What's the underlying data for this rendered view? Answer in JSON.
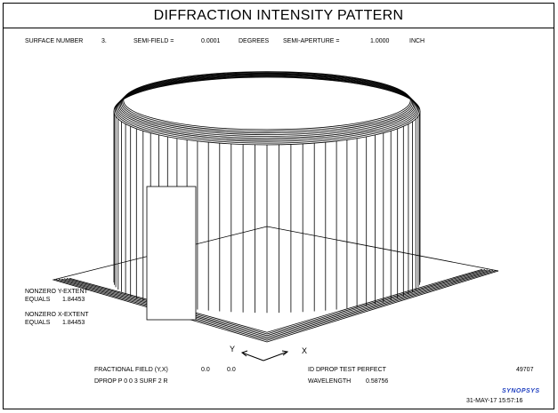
{
  "title": "DIFFRACTION INTENSITY PATTERN",
  "header": {
    "surface_label": "SURFACE NUMBER",
    "surface_value": "3.",
    "semi_field_label": "SEMI-FIELD =",
    "semi_field_value": "0.0001",
    "semi_field_unit": "DEGREES",
    "semi_aperture_label": "SEMI-APERTURE =",
    "semi_aperture_value": "1.0000",
    "semi_aperture_unit": "INCH"
  },
  "extents": {
    "y_label": "NONZERO Y-EXTENT",
    "y_equals": "EQUALS",
    "y_value": "1.84453",
    "x_label": "NONZERO X-EXTENT",
    "x_equals": "EQUALS",
    "x_value": "1.84453"
  },
  "axes": {
    "y": "Y",
    "x": "X"
  },
  "footer": {
    "fractional_field_label": "FRACTIONAL FIELD (Y,X)",
    "field_y": "0.0",
    "field_x": "0.0",
    "dprop_label": "DPROP P 0 0 3 SURF 2 R",
    "id_label": "ID DPROP TEST PERFECT",
    "wavelength_label": "WAVELENGTH",
    "wavelength_value": "0.58756",
    "run_number": "49707",
    "logo": "SYNOPSYS",
    "datetime": "31-MAY-17  15:57:16"
  },
  "colors": {
    "line": "#000000",
    "background": "#ffffff",
    "logo": "#2040c0"
  }
}
